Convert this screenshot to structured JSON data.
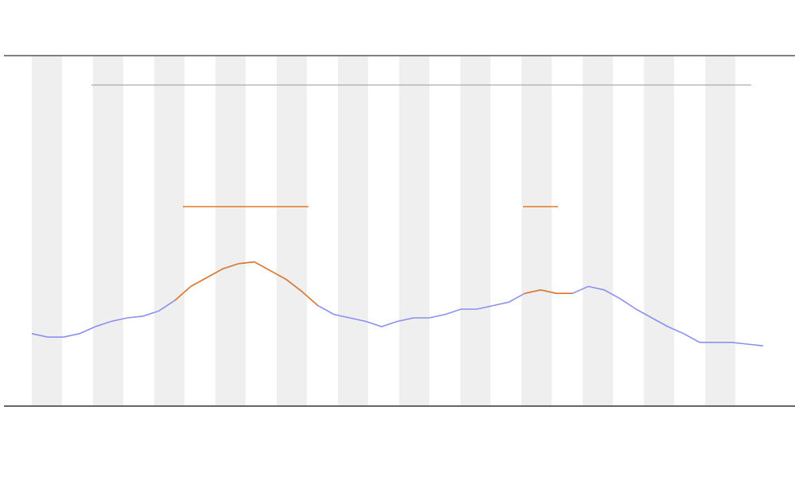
{
  "chart_data": {
    "type": "line",
    "x": [
      0,
      1,
      2,
      3,
      4,
      5,
      6,
      7,
      8,
      9,
      10,
      11,
      12,
      13,
      14,
      15,
      16,
      17,
      18,
      19,
      20,
      21,
      22,
      23,
      24,
      25,
      26,
      27,
      28,
      29,
      30,
      31,
      32,
      33,
      34,
      35,
      36,
      37,
      38,
      39,
      40,
      41,
      42,
      43,
      44,
      45,
      46
    ],
    "xlim": [
      0,
      46
    ],
    "ylim": [
      0,
      100
    ],
    "series": [
      {
        "color": "#8a8ff0",
        "values": [
          20.5,
          19.5,
          19.5,
          20.5,
          22.5,
          24,
          25,
          25.5,
          27,
          30,
          34,
          36.5,
          39,
          40.5,
          41,
          38.5,
          36,
          32.5,
          28.5,
          26,
          25,
          24,
          22.5,
          24,
          25,
          25,
          26,
          27.5,
          27.5,
          28.5,
          29.5,
          32,
          33,
          32,
          32,
          34,
          33,
          30.5,
          27.5,
          25,
          22.5,
          20.5,
          18,
          18,
          18,
          17.5,
          17
        ]
      },
      {
        "color": "#e07b2a",
        "values": [
          null,
          null,
          null,
          null,
          null,
          null,
          null,
          null,
          null,
          30,
          34,
          36.5,
          39,
          40.5,
          41,
          38.5,
          36,
          32.5,
          28.5,
          null,
          null,
          null,
          null,
          null,
          null,
          null,
          null,
          null,
          null,
          null,
          null,
          32,
          33,
          32,
          32,
          null,
          null,
          null,
          null,
          null,
          null,
          null,
          null,
          null,
          null,
          null,
          null
        ]
      }
    ]
  }
}
